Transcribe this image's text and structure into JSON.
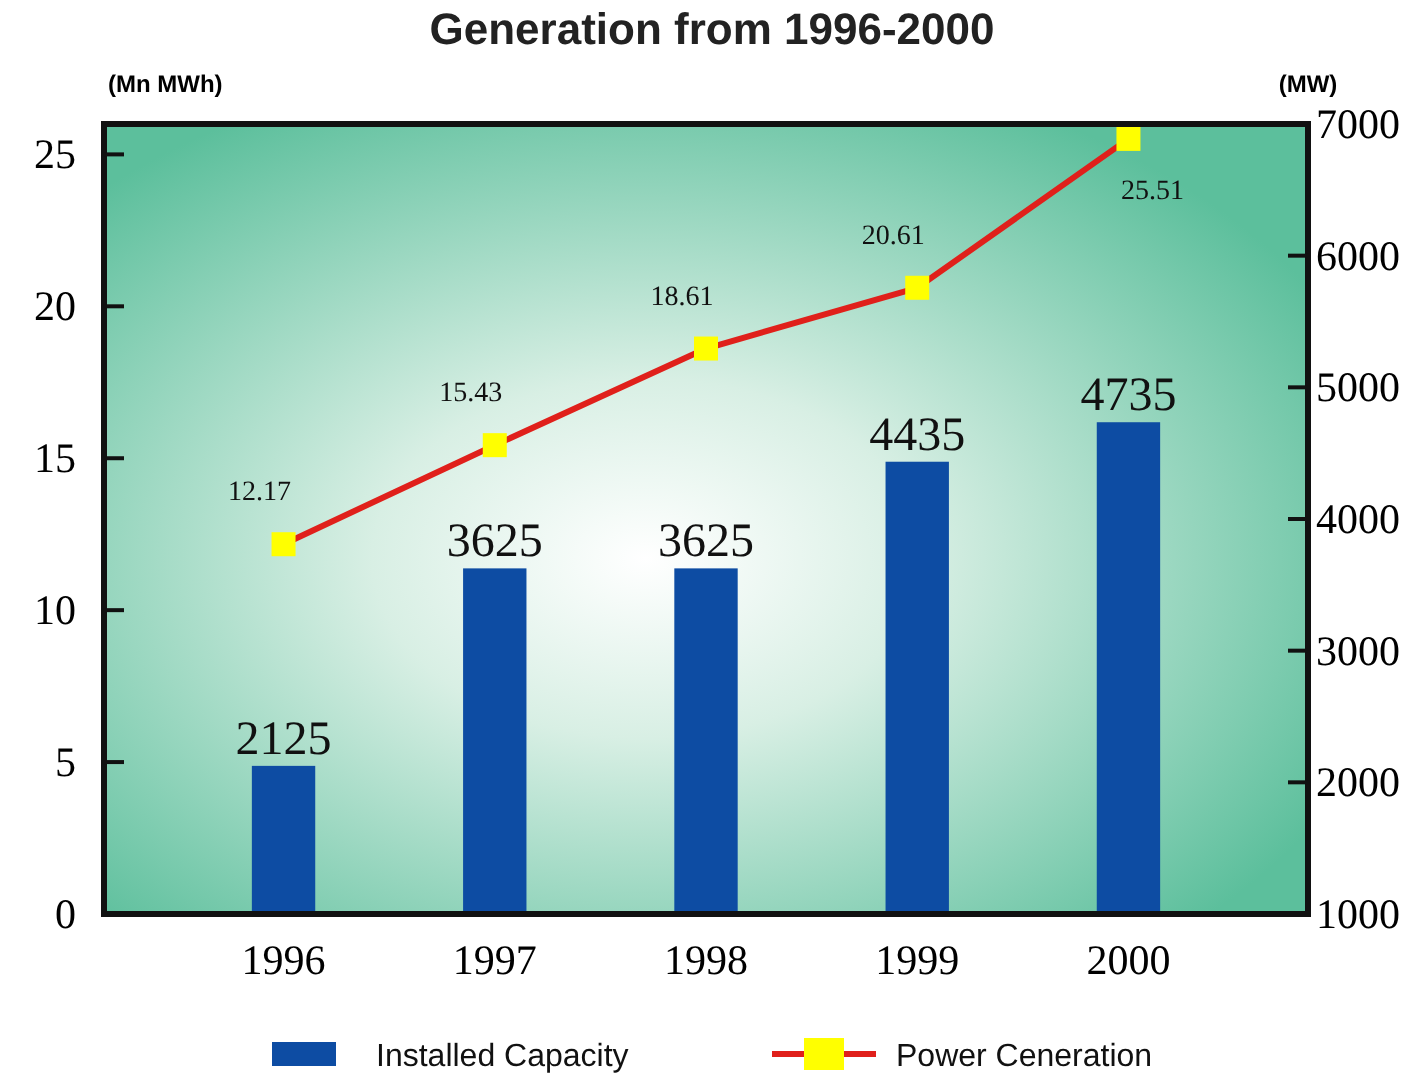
{
  "chart_data": {
    "type": "bar",
    "title": "Generation from 1996-2000",
    "ylabel": "(Mn MWh)",
    "y2label": "(MW)",
    "categories": [
      "1996",
      "1997",
      "1998",
      "1999",
      "2000"
    ],
    "series": [
      {
        "name": "Installed Capacity",
        "axis": "y2",
        "color": "#0d4ca3",
        "values": [
          2125,
          3625,
          3625,
          4435,
          4735
        ]
      },
      {
        "name": "Power Ceneration",
        "type": "line",
        "axis": "y",
        "color": "#e0201b",
        "marker": "square",
        "values": [
          12.17,
          15.43,
          18.61,
          20.61,
          25.51
        ]
      }
    ],
    "ylim": [
      0,
      26
    ],
    "yticks": [
      0,
      5,
      10,
      15,
      20,
      25
    ],
    "y2lim": [
      1000,
      7000
    ],
    "y2ticks": [
      1000,
      2000,
      3000,
      4000,
      5000,
      6000,
      7000
    ],
    "data_labels": true,
    "legend": "bottom",
    "grid": false
  }
}
